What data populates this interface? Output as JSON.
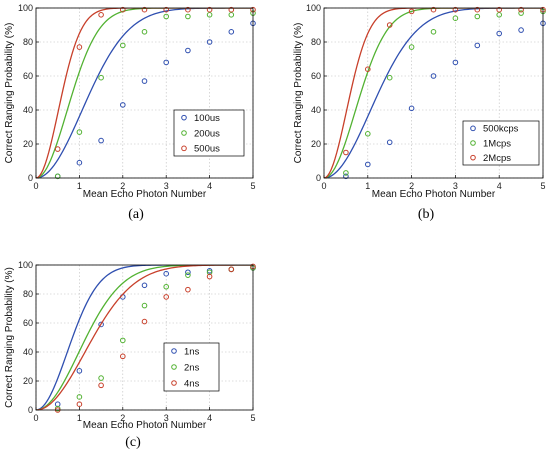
{
  "chart_data": [
    {
      "type": "line",
      "panel_label": "(a)",
      "xlabel": "Mean Echo Photon Number",
      "ylabel": "Correct Ranging Probability (%)",
      "xlim": [
        0,
        5
      ],
      "ylim": [
        0,
        100
      ],
      "xticks": [
        "0",
        "1",
        "2",
        "3",
        "4",
        "5"
      ],
      "yticks": [
        "0",
        "20",
        "40",
        "60",
        "80",
        "100"
      ],
      "grid": true,
      "legend_position": "center-right",
      "series": [
        {
          "name": "100us",
          "color": "#2f4fb0",
          "k": 0.45,
          "points": [
            [
              0.5,
              1
            ],
            [
              1,
              9
            ],
            [
              1.5,
              22
            ],
            [
              2,
              43
            ],
            [
              2.5,
              57
            ],
            [
              3,
              68
            ],
            [
              3.5,
              75
            ],
            [
              4,
              80
            ],
            [
              4.5,
              86
            ],
            [
              5,
              91
            ]
          ]
        },
        {
          "name": "200us",
          "color": "#52b232",
          "k": 0.98,
          "points": [
            [
              0.5,
              1
            ],
            [
              1,
              27
            ],
            [
              1.5,
              59
            ],
            [
              2,
              78
            ],
            [
              2.5,
              86
            ],
            [
              3,
              95
            ],
            [
              3.5,
              95
            ],
            [
              4,
              96
            ],
            [
              4.5,
              96
            ],
            [
              5,
              97
            ]
          ]
        },
        {
          "name": "500us",
          "color": "#c8402b",
          "k": 1.9,
          "points": [
            [
              0.5,
              17
            ],
            [
              1,
              77
            ],
            [
              1.5,
              96
            ],
            [
              2,
              99
            ],
            [
              2.5,
              99
            ],
            [
              3,
              99
            ],
            [
              3.5,
              99
            ],
            [
              4,
              99
            ],
            [
              4.5,
              99
            ],
            [
              5,
              99
            ]
          ]
        }
      ]
    },
    {
      "type": "line",
      "panel_label": "(b)",
      "xlabel": "Mean Echo Photon Number",
      "ylabel": "Correct Ranging Probability (%)",
      "xlim": [
        0,
        5
      ],
      "ylim": [
        0,
        100
      ],
      "xticks": [
        "0",
        "1",
        "2",
        "3",
        "4",
        "5"
      ],
      "yticks": [
        "0",
        "20",
        "40",
        "60",
        "80",
        "100"
      ],
      "grid": true,
      "legend_position": "bottom-right",
      "series": [
        {
          "name": "500kcps",
          "color": "#2f4fb0",
          "k": 0.45,
          "points": [
            [
              0.5,
              1
            ],
            [
              1,
              8
            ],
            [
              1.5,
              21
            ],
            [
              2,
              41
            ],
            [
              2.5,
              60
            ],
            [
              3,
              68
            ],
            [
              3.5,
              78
            ],
            [
              4,
              85
            ],
            [
              4.5,
              87
            ],
            [
              5,
              91
            ]
          ]
        },
        {
          "name": "1Mcps",
          "color": "#52b232",
          "k": 0.98,
          "points": [
            [
              0.5,
              3
            ],
            [
              1,
              26
            ],
            [
              1.5,
              59
            ],
            [
              2,
              77
            ],
            [
              2.5,
              86
            ],
            [
              3,
              94
            ],
            [
              3.5,
              95
            ],
            [
              4,
              96
            ],
            [
              4.5,
              97
            ],
            [
              5,
              98
            ]
          ]
        },
        {
          "name": "2Mcps",
          "color": "#c8402b",
          "k": 1.9,
          "points": [
            [
              0.5,
              15
            ],
            [
              1,
              64
            ],
            [
              1.5,
              90
            ],
            [
              2,
              98
            ],
            [
              2.5,
              99
            ],
            [
              3,
              99
            ],
            [
              3.5,
              99
            ],
            [
              4,
              99
            ],
            [
              4.5,
              99
            ],
            [
              5,
              99
            ]
          ]
        }
      ]
    },
    {
      "type": "line",
      "panel_label": "(c)",
      "xlabel": "Mean Echo Photon Number",
      "ylabel": "Correct Ranging Probability (%)",
      "xlim": [
        0,
        5
      ],
      "ylim": [
        0,
        100
      ],
      "xticks": [
        "0",
        "1",
        "2",
        "3",
        "4",
        "5"
      ],
      "yticks": [
        "0",
        "20",
        "40",
        "60",
        "80",
        "100"
      ],
      "grid": true,
      "legend_position": "bottom-center",
      "series": [
        {
          "name": "1ns",
          "color": "#2f4fb0",
          "k": 0.98,
          "points": [
            [
              0.5,
              4
            ],
            [
              1,
              27
            ],
            [
              1.5,
              59
            ],
            [
              2,
              78
            ],
            [
              2.5,
              86
            ],
            [
              3,
              94
            ],
            [
              3.5,
              95
            ],
            [
              4,
              96
            ],
            [
              4.5,
              97
            ],
            [
              5,
              98
            ]
          ]
        },
        {
          "name": "2ns",
          "color": "#52b232",
          "k": 0.52,
          "points": [
            [
              0.5,
              1
            ],
            [
              1,
              9
            ],
            [
              1.5,
              22
            ],
            [
              2,
              48
            ],
            [
              2.5,
              72
            ],
            [
              3,
              85
            ],
            [
              3.5,
              93
            ],
            [
              4,
              95
            ],
            [
              4.5,
              97
            ],
            [
              5,
              98
            ]
          ]
        },
        {
          "name": "4ns",
          "color": "#c8402b",
          "k": 0.4,
          "points": [
            [
              0.5,
              0
            ],
            [
              1,
              4
            ],
            [
              1.5,
              17
            ],
            [
              2,
              37
            ],
            [
              2.5,
              61
            ],
            [
              3,
              78
            ],
            [
              3.5,
              83
            ],
            [
              4,
              92
            ],
            [
              4.5,
              97
            ],
            [
              5,
              99
            ]
          ]
        }
      ]
    }
  ]
}
